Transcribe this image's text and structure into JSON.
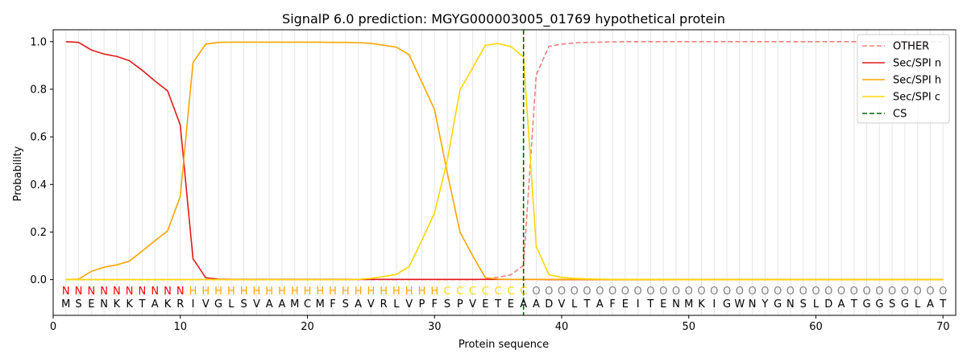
{
  "chart_data": {
    "type": "line",
    "title": "SignalP 6.0 prediction: MGYG000003005_01769 hypothetical protein",
    "xlabel": "Protein sequence",
    "ylabel": "Probability",
    "xlim": [
      0,
      71
    ],
    "ylim": [
      -0.15,
      1.05
    ],
    "xticks": [
      0,
      10,
      20,
      30,
      40,
      50,
      60,
      70
    ],
    "yticks": [
      "0.0",
      "0.2",
      "0.4",
      "0.6",
      "0.8",
      "1.0"
    ],
    "ytick_values": [
      0.0,
      0.2,
      0.4,
      0.6,
      0.8,
      1.0
    ],
    "legend_position": "top-right",
    "grid": "vertical lines at each residue",
    "sequence": [
      "M",
      "S",
      "E",
      "N",
      "K",
      "K",
      "T",
      "A",
      "K",
      "R",
      "I",
      "V",
      "G",
      "L",
      "S",
      "V",
      "A",
      "A",
      "M",
      "C",
      "M",
      "F",
      "S",
      "A",
      "V",
      "R",
      "L",
      "V",
      "P",
      "F",
      "S",
      "P",
      "V",
      "E",
      "T",
      "E",
      "A",
      "A",
      "D",
      "V",
      "L",
      "T",
      "A",
      "F",
      "E",
      "I",
      "T",
      "E",
      "N",
      "M",
      "K",
      "I",
      "G",
      "W",
      "N",
      "Y",
      "G",
      "N",
      "S",
      "L",
      "D",
      "A",
      "T",
      "G",
      "G",
      "S",
      "G",
      "L",
      "A",
      "T"
    ],
    "labels": [
      "N",
      "N",
      "N",
      "N",
      "N",
      "N",
      "N",
      "N",
      "N",
      "N",
      "H",
      "H",
      "H",
      "H",
      "H",
      "H",
      "H",
      "H",
      "H",
      "H",
      "H",
      "H",
      "H",
      "H",
      "H",
      "H",
      "H",
      "H",
      "H",
      "H",
      "C",
      "C",
      "C",
      "C",
      "C",
      "C",
      "C",
      "O",
      "O",
      "O",
      "O",
      "O",
      "O",
      "O",
      "O",
      "O",
      "O",
      "O",
      "O",
      "O",
      "O",
      "O",
      "O",
      "O",
      "O",
      "O",
      "O",
      "O",
      "O",
      "O",
      "O",
      "O",
      "O",
      "O",
      "O",
      "O",
      "O",
      "O",
      "O",
      "O"
    ],
    "label_colors": {
      "N": "#ff0000",
      "H": "#ffa500",
      "C": "#ffd700",
      "O": "#808080"
    },
    "series": [
      {
        "name": "OTHER",
        "color": "#f08080",
        "dash": "dashed",
        "values": [
          0,
          0,
          0,
          0,
          0,
          0,
          0,
          0,
          0,
          0,
          0,
          0,
          0,
          0,
          0,
          0,
          0,
          0,
          0,
          0,
          0,
          0,
          0,
          0,
          0,
          0,
          0,
          0,
          0,
          0,
          0,
          0,
          0,
          0.002,
          0.01,
          0.02,
          0.06,
          0.86,
          0.98,
          0.99,
          0.995,
          0.997,
          0.998,
          0.999,
          1,
          1,
          1,
          1,
          1,
          1,
          1,
          1,
          1,
          1,
          1,
          1,
          1,
          1,
          1,
          1,
          1,
          1,
          1,
          1,
          1,
          1,
          1,
          1,
          1,
          1
        ]
      },
      {
        "name": "Sec/SPI n",
        "color": "#e31a1c",
        "dash": "solid",
        "values": [
          1.0,
          0.997,
          0.965,
          0.948,
          0.938,
          0.92,
          0.88,
          0.835,
          0.793,
          0.65,
          0.088,
          0.008,
          0.002,
          0.001,
          0.001,
          0.001,
          0.001,
          0.001,
          0.001,
          0.001,
          0.001,
          0.001,
          0.001,
          0.001,
          0.001,
          0.001,
          0.001,
          0.001,
          0.001,
          0.001,
          0.001,
          0.001,
          0.001,
          0.001,
          0.001,
          0.001,
          0.001,
          0.001,
          0,
          0,
          0,
          0,
          0,
          0,
          0,
          0,
          0,
          0,
          0,
          0,
          0,
          0,
          0,
          0,
          0,
          0,
          0,
          0,
          0,
          0,
          0,
          0,
          0,
          0,
          0,
          0,
          0,
          0,
          0,
          0
        ]
      },
      {
        "name": "Sec/SPI h",
        "color": "#ffa500",
        "dash": "solid",
        "values": [
          0,
          0.002,
          0.035,
          0.052,
          0.062,
          0.078,
          0.12,
          0.163,
          0.205,
          0.35,
          0.912,
          0.99,
          0.997,
          0.998,
          0.998,
          0.998,
          0.998,
          0.998,
          0.998,
          0.998,
          0.998,
          0.997,
          0.997,
          0.996,
          0.993,
          0.985,
          0.977,
          0.945,
          0.83,
          0.715,
          0.45,
          0.2,
          0.1,
          0.008,
          0.002,
          0.001,
          0.001,
          0.001,
          0.001,
          0.001,
          0.001,
          0.001,
          0,
          0,
          0,
          0,
          0,
          0,
          0,
          0,
          0,
          0,
          0,
          0,
          0,
          0,
          0,
          0,
          0,
          0,
          0,
          0,
          0,
          0,
          0,
          0,
          0,
          0,
          0,
          0
        ]
      },
      {
        "name": "Sec/SPI c",
        "color": "#ffd700",
        "dash": "solid",
        "values": [
          0,
          0,
          0,
          0,
          0,
          0,
          0,
          0,
          0,
          0,
          0,
          0,
          0,
          0,
          0,
          0,
          0,
          0,
          0,
          0,
          0,
          0,
          0,
          0.001,
          0.005,
          0.013,
          0.022,
          0.055,
          0.165,
          0.28,
          0.5,
          0.798,
          0.89,
          0.985,
          0.992,
          0.98,
          0.935,
          0.14,
          0.02,
          0.01,
          0.005,
          0.003,
          0.002,
          0.001,
          0.001,
          0.001,
          0.001,
          0.001,
          0,
          0,
          0,
          0,
          0,
          0,
          0,
          0,
          0,
          0,
          0,
          0,
          0,
          0,
          0,
          0,
          0,
          0,
          0,
          0,
          0,
          0
        ]
      }
    ],
    "cs": {
      "name": "CS",
      "x": 37,
      "color": "#006400"
    }
  }
}
